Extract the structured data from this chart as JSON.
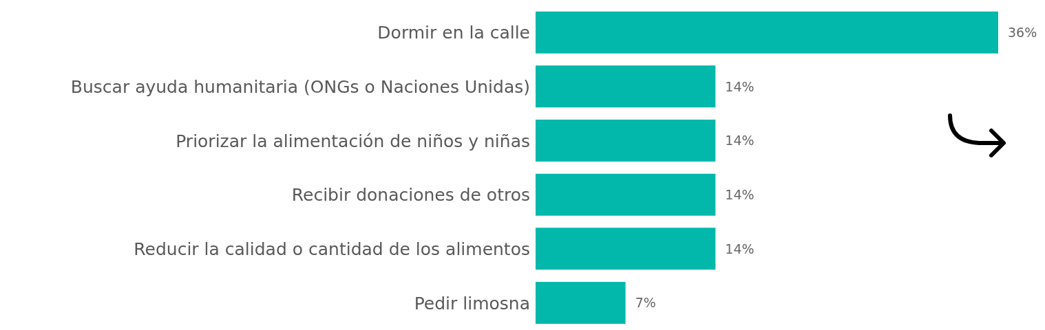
{
  "chart_data": {
    "type": "bar",
    "orientation": "horizontal",
    "categories": [
      "Dormir en la calle",
      "Buscar ayuda humanitaria (ONGs o Naciones Unidas)",
      "Priorizar la alimentación de niños y niñas",
      "Recibir donaciones de otros",
      "Reducir la calidad o cantidad de los alimentos",
      "Pedir limosna"
    ],
    "values": [
      36,
      14,
      14,
      14,
      14,
      7
    ],
    "value_labels": [
      "36%",
      "14%",
      "14%",
      "14%",
      "14%",
      "7%"
    ],
    "color": "#02b8ab",
    "grid": false,
    "legend": false
  }
}
